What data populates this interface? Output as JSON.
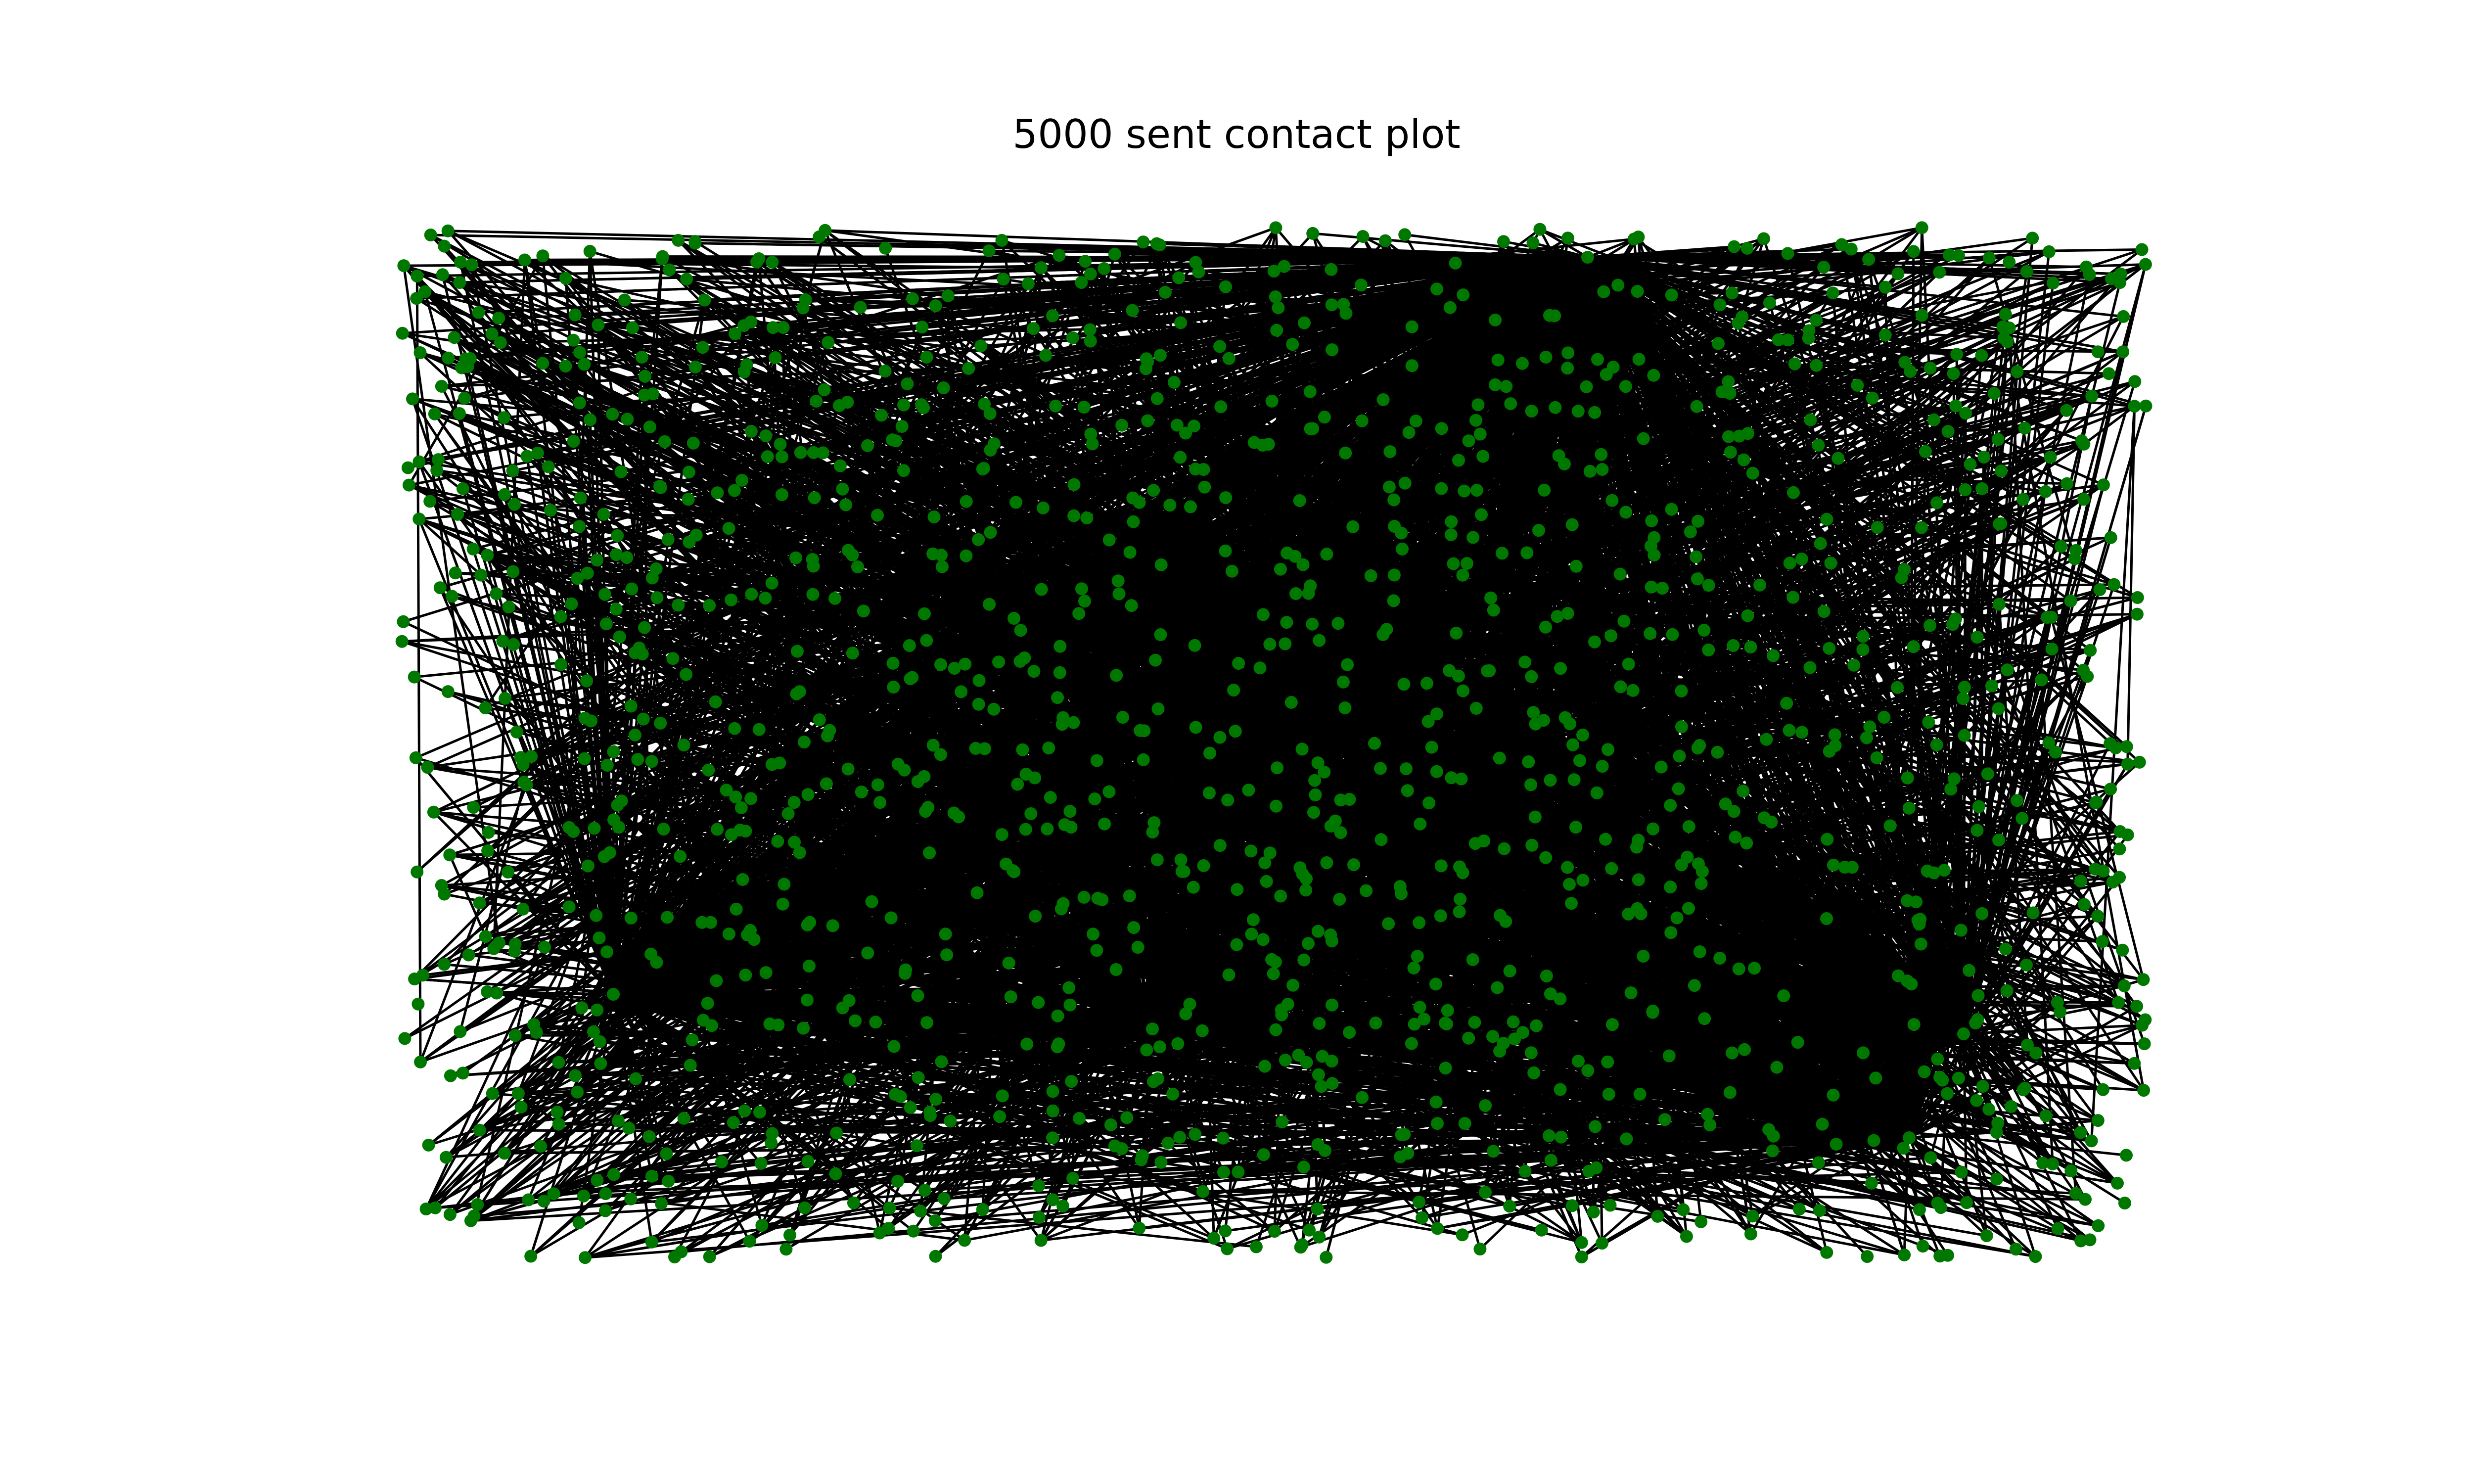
{
  "figure": {
    "title": "5000 sent contact plot"
  },
  "graph": {
    "node_color": "#007800",
    "edge_color": "#000000",
    "background": "#ffffff",
    "axes_visible": false,
    "hub_count": 8,
    "node_count": 1400,
    "edge_count": 5000
  }
}
